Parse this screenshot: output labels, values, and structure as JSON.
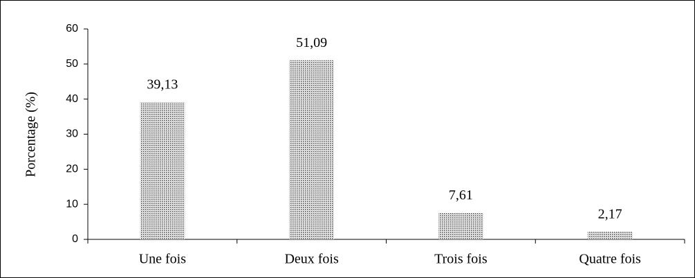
{
  "chart_data": {
    "type": "bar",
    "y_label": "Porcentage (%)",
    "categories": [
      "Une fois",
      "Deux fois",
      "Trois fois",
      "Quatre fois"
    ],
    "values": [
      39.13,
      51.09,
      7.61,
      2.17
    ],
    "value_labels": [
      "39,13",
      "51,09",
      "7,61",
      "2,17"
    ],
    "color": "#555555",
    "ylim": [
      0,
      60
    ],
    "yticks": [
      0,
      10,
      20,
      30,
      40,
      50,
      60
    ],
    "grid": false
  }
}
